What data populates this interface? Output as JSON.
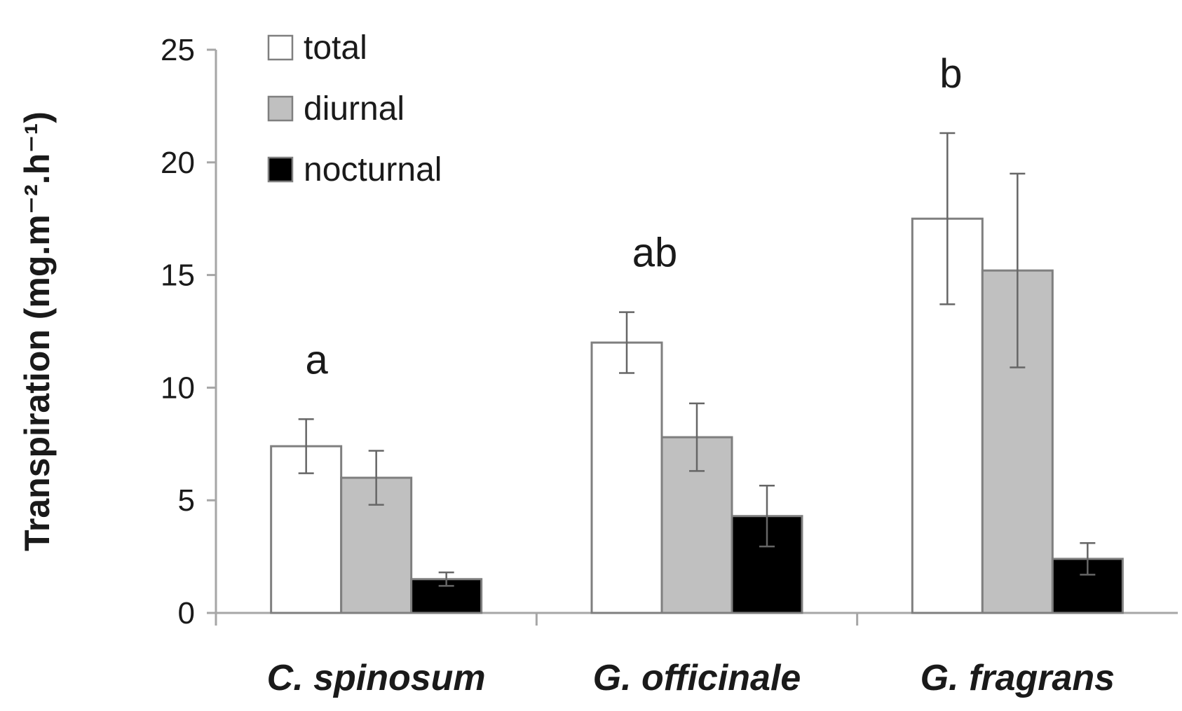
{
  "chart_data": {
    "type": "bar",
    "title": "",
    "xlabel": "",
    "ylabel": "Transpiration (mg.m⁻².h⁻¹)",
    "ylim": [
      0,
      25
    ],
    "yticks": [
      0,
      5,
      10,
      15,
      20,
      25
    ],
    "grid": false,
    "legend_position": "top-left",
    "categories": [
      "C. spinosum",
      "G. officinale",
      "G. fragrans"
    ],
    "series": [
      {
        "name": "total",
        "color": "#ffffff",
        "values": [
          7.4,
          12.0,
          17.5
        ],
        "errors": [
          1.2,
          1.35,
          3.8
        ]
      },
      {
        "name": "diurnal",
        "color": "#c0c0c0",
        "values": [
          6.0,
          7.8,
          15.2
        ],
        "errors": [
          1.2,
          1.5,
          4.3
        ]
      },
      {
        "name": "nocturnal",
        "color": "#000000",
        "values": [
          1.5,
          4.3,
          2.4
        ],
        "errors": [
          0.3,
          1.35,
          0.7
        ]
      }
    ],
    "annotations": [
      {
        "category": "C. spinosum",
        "text": "a"
      },
      {
        "category": "G. officinale",
        "text": "ab"
      },
      {
        "category": "G. fragrans",
        "text": "b"
      }
    ]
  }
}
